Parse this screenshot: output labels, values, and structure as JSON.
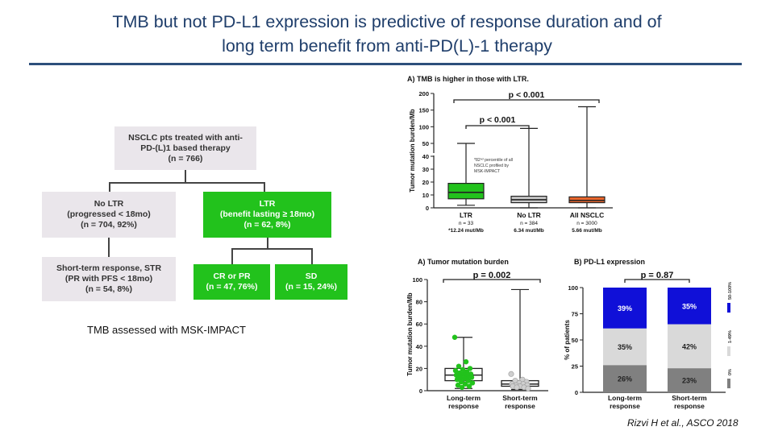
{
  "title_line1": "TMB but not PD-L1 expression is predictive of response duration and of",
  "title_line2": "long term benefit from anti-PD(L)-1 therapy",
  "flow": {
    "root": "NSCLC pts treated with anti-\nPD-(L)1 based therapy\n(n = 766)",
    "no_ltr": "No LTR\n(progressed < 18mo)\n(n = 704, 92%)",
    "ltr": "LTR\n(benefit lasting ≥ 18mo)\n(n = 62, 8%)",
    "str": "Short-term response, STR\n(PR with PFS < 18mo)\n(n = 54, 8%)",
    "cr_pr": "CR or PR\n(n = 47, 76%)",
    "sd": "SD\n(n = 15, 24%)"
  },
  "footer_text": "TMB assessed with MSK-IMPACT",
  "citation": "Rizvi H et al., ASCO 2018",
  "colors": {
    "green": "#22c21c",
    "gray": "#c8c8c8",
    "orange": "#e8652c",
    "blue": "#1010d8",
    "pdl1_mid": "#d9d9d9",
    "pdl1_low": "#808080"
  },
  "chart_data": [
    {
      "type": "box",
      "title": "A) TMB is higher in those with LTR.",
      "ylabel": "Tumor mutation burden/Mb",
      "yticks": [
        0,
        10,
        20,
        30,
        40,
        50,
        100,
        150,
        200
      ],
      "axis_break": true,
      "categories": [
        "LTR",
        "No LTR",
        "All NSCLC"
      ],
      "n_labels": [
        "n = 33",
        "n = 384",
        "n = 3000"
      ],
      "median_labels": [
        "*12.24 mut/Mb",
        "6.34 mut/Mb",
        "5.66 mut/Mb"
      ],
      "boxes": [
        {
          "min": 2,
          "q1": 7,
          "median": 12,
          "q3": 19,
          "max": 50
        },
        {
          "min": 0,
          "q1": 4,
          "median": 6.3,
          "q3": 9,
          "max": 95
        },
        {
          "min": 0,
          "q1": 4,
          "median": 5.7,
          "q3": 8.5,
          "max": 160
        }
      ],
      "box_colors": [
        "#22c21c",
        "#c8c8c8",
        "#e8652c"
      ],
      "annotation": "*82ⁿᵈ percentile of all\nNSCLC profiled by\nMSK-IMPACT",
      "comparisons": [
        "p < 0.001",
        "p < 0.001"
      ]
    },
    {
      "type": "box",
      "title": "A) Tumor mutation burden",
      "ylabel": "Tumor mutation burden/Mb",
      "yticks": [
        0,
        20,
        40,
        60,
        80,
        100
      ],
      "ylim": [
        0,
        100
      ],
      "categories": [
        "Long-term\nresponse",
        "Short-term\nresponse"
      ],
      "boxes": [
        {
          "min": 2,
          "q1": 9,
          "median": 14,
          "q3": 20,
          "max": 48
        },
        {
          "min": 1,
          "q1": 4,
          "median": 6,
          "q3": 9,
          "max": 91
        }
      ],
      "points": [
        [
          48,
          26,
          22,
          20,
          19,
          18,
          17,
          16,
          15,
          15,
          14,
          13,
          12,
          12,
          11,
          10,
          9,
          8,
          7,
          6,
          5,
          4,
          3
        ],
        [
          15,
          10,
          9,
          8,
          7,
          6,
          6,
          5,
          5,
          4,
          4,
          3,
          3,
          2
        ]
      ],
      "comparison": "p = 0.002"
    },
    {
      "type": "stacked_bar",
      "title": "B) PD-L1 expression",
      "ylabel": "% of patients",
      "yticks": [
        0,
        25,
        50,
        75,
        100
      ],
      "categories": [
        "Long-term\nresponse",
        "Short-term\nresponse"
      ],
      "series": [
        {
          "name": "0%",
          "values": [
            26,
            23
          ]
        },
        {
          "name": "1-49%",
          "values": [
            35,
            42
          ]
        },
        {
          "name": "50-100%",
          "values": [
            39,
            35
          ]
        }
      ],
      "labels": [
        [
          "26%",
          "35%",
          "39%"
        ],
        [
          "23%",
          "42%",
          "35%"
        ]
      ],
      "comparison": "p = 0.87"
    }
  ]
}
